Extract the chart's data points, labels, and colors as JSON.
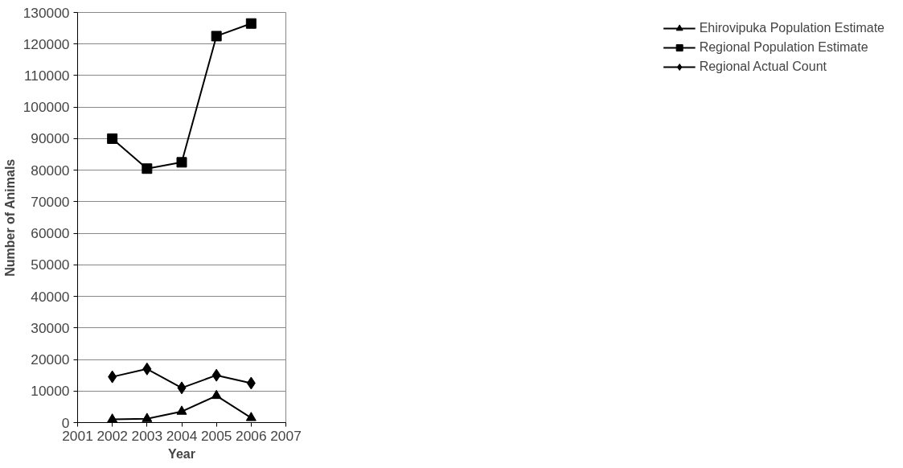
{
  "chart_data": {
    "type": "line",
    "xlabel": "Year",
    "ylabel": "Number of Animals",
    "x": [
      2002,
      2003,
      2004,
      2005,
      2006
    ],
    "series": [
      {
        "name": "Ehirovipuka Population Estimate",
        "color": "#000000",
        "marker": "triangle",
        "values": [
          1000,
          1200,
          3500,
          8500,
          1500
        ]
      },
      {
        "name": "Regional Population Estimate",
        "color": "#000000",
        "marker": "square",
        "values": [
          90000,
          80500,
          82500,
          122500,
          126500
        ]
      },
      {
        "name": "Regional Actual Count",
        "color": "#000000",
        "marker": "diamond",
        "values": [
          14500,
          17000,
          11000,
          15000,
          12500
        ]
      }
    ],
    "xlim": [
      2001,
      2007
    ],
    "xticks": [
      2001,
      2002,
      2003,
      2004,
      2005,
      2006,
      2007
    ],
    "ylim": [
      0,
      130000
    ],
    "yticks": [
      0,
      10000,
      20000,
      30000,
      40000,
      50000,
      60000,
      70000,
      80000,
      90000,
      100000,
      110000,
      120000,
      130000
    ],
    "grid": "y",
    "legend": "right",
    "line_style": "solid"
  }
}
